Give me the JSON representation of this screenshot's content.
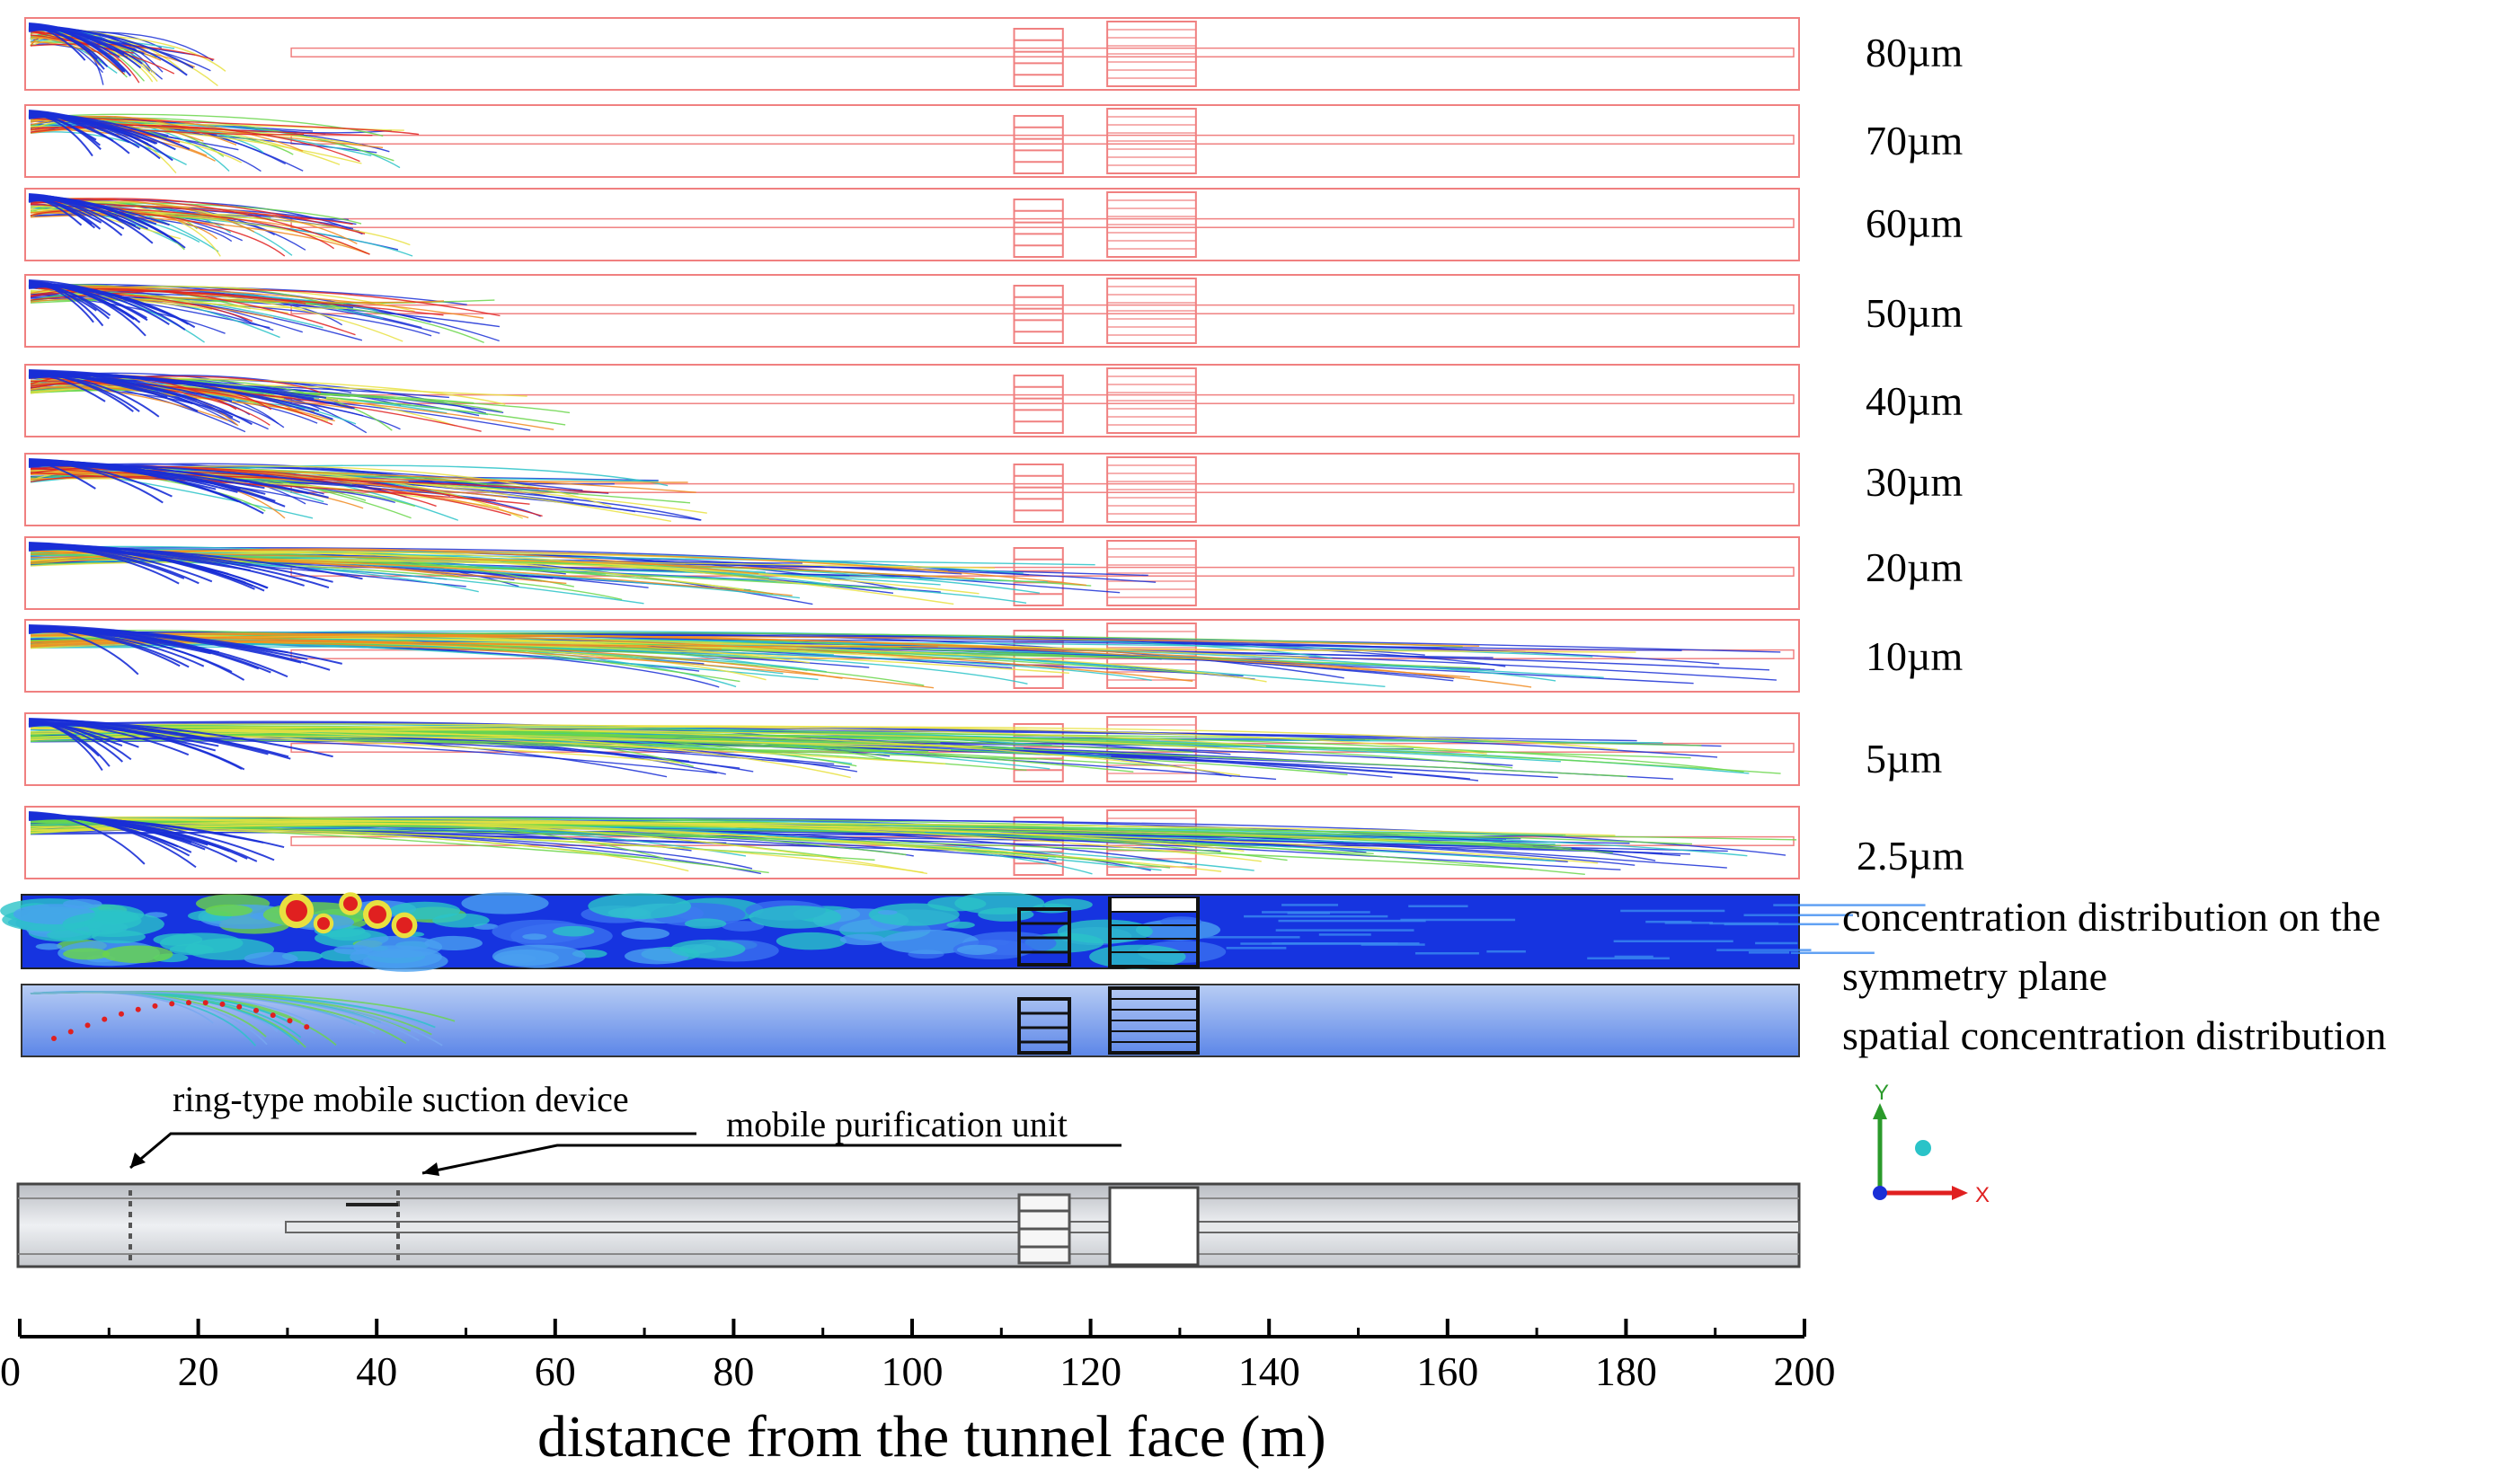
{
  "figure": {
    "panels": [
      {
        "id": "p80",
        "label": "80µm",
        "reach_m": 23,
        "palette": "coarse"
      },
      {
        "id": "p70",
        "label": "70µm",
        "reach_m": 45,
        "palette": "coarse"
      },
      {
        "id": "p60",
        "label": "60µm",
        "reach_m": 44,
        "palette": "coarse"
      },
      {
        "id": "p50",
        "label": "50µm",
        "reach_m": 54,
        "palette": "mid"
      },
      {
        "id": "p40",
        "label": "40µm",
        "reach_m": 64,
        "palette": "mid"
      },
      {
        "id": "p30",
        "label": "30µm",
        "reach_m": 77,
        "palette": "mid"
      },
      {
        "id": "p20",
        "label": "20µm",
        "reach_m": 131,
        "palette": "fine"
      },
      {
        "id": "p10",
        "label": "10µm",
        "reach_m": 200,
        "palette": "fine"
      },
      {
        "id": "p5",
        "label": "5µm",
        "reach_m": 200,
        "palette": "green"
      },
      {
        "id": "p2_5",
        "label": "2.5µm",
        "reach_m": 200,
        "palette": "green"
      }
    ],
    "concentration_symmetry_label_line1": "concentration distribution on the",
    "concentration_symmetry_label_line2": "symmetry plane",
    "spatial_concentration_label": "spatial concentration distribution"
  },
  "schematic": {
    "suction_label": "ring-type mobile suction device",
    "purification_label": "mobile purification unit"
  },
  "axis": {
    "ticks": [
      "0",
      "20",
      "40",
      "60",
      "80",
      "100",
      "120",
      "140",
      "160",
      "180",
      "200"
    ],
    "xlabel": "distance from the tunnel face (m)",
    "range_m": [
      0,
      200
    ]
  },
  "triad": {
    "y": "Y",
    "x": "X"
  },
  "colors": {
    "outline": "#f08080",
    "blue": "#1a2fd6",
    "teal": "#2ac3c8",
    "green": "#6ad64a",
    "yellow": "#e8e040",
    "orange": "#f08a20",
    "red": "#e02020"
  }
}
